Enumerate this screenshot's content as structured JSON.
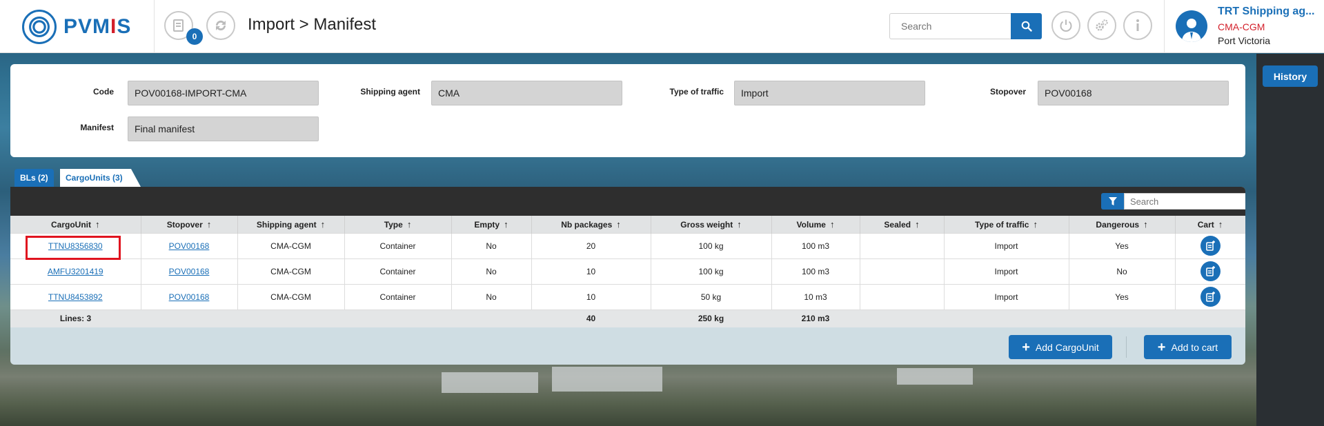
{
  "app": {
    "logo_text_a": "PVM",
    "logo_text_red": "I",
    "logo_text_b": "S"
  },
  "header": {
    "cart_count": "0",
    "breadcrumb": "Import > Manifest",
    "search_placeholder": "Search",
    "user": {
      "name": "TRT Shipping ag...",
      "company": "CMA-CGM",
      "port": "Port Victoria"
    }
  },
  "side": {
    "history_label": "History"
  },
  "form": {
    "code_label": "Code",
    "code_value": "POV00168-IMPORT-CMA",
    "agent_label": "Shipping agent",
    "agent_value": "CMA",
    "traffic_label": "Type of traffic",
    "traffic_value": "Import",
    "stopover_label": "Stopover",
    "stopover_value": "POV00168",
    "manifest_label": "Manifest",
    "manifest_value": "Final manifest"
  },
  "tabs": {
    "bls": "BLs (2)",
    "cargounits": "CargoUnits (3)"
  },
  "grid": {
    "search_placeholder": "Search",
    "columns": [
      "CargoUnit",
      "Stopover",
      "Shipping agent",
      "Type",
      "Empty",
      "Nb packages",
      "Gross weight",
      "Volume",
      "Sealed",
      "Type of traffic",
      "Dangerous",
      "Cart"
    ],
    "rows": [
      {
        "cargounit": "TTNU8356830",
        "stopover": "POV00168",
        "agent": "CMA-CGM",
        "type": "Container",
        "empty": "No",
        "packages": "20",
        "weight": "100 kg",
        "volume": "100 m3",
        "sealed": "",
        "traffic": "Import",
        "dangerous": "Yes"
      },
      {
        "cargounit": "AMFU3201419",
        "stopover": "POV00168",
        "agent": "CMA-CGM",
        "type": "Container",
        "empty": "No",
        "packages": "10",
        "weight": "100 kg",
        "volume": "100 m3",
        "sealed": "",
        "traffic": "Import",
        "dangerous": "No"
      },
      {
        "cargounit": "TTNU8453892",
        "stopover": "POV00168",
        "agent": "CMA-CGM",
        "type": "Container",
        "empty": "No",
        "packages": "10",
        "weight": "50 kg",
        "volume": "10 m3",
        "sealed": "",
        "traffic": "Import",
        "dangerous": "Yes"
      }
    ],
    "footer": {
      "lines": "Lines: 3",
      "packages": "40",
      "weight": "250 kg",
      "volume": "210 m3"
    }
  },
  "actions": {
    "add_cargounit": "Add CargoUnit",
    "add_to_cart": "Add to cart"
  },
  "colors": {
    "accent": "#1a6fb7",
    "brand_red": "#d31f2a",
    "highlight": "#e0141f"
  }
}
